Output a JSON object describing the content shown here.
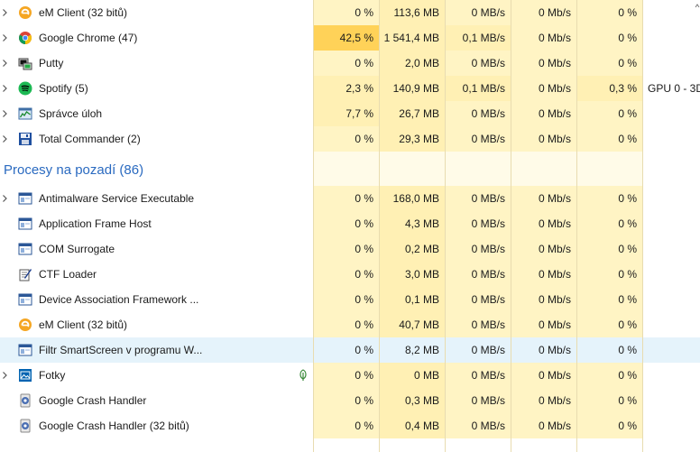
{
  "colors": {
    "heat_0": "#fff4c4",
    "heat_1": "#fff0b4",
    "heat_high": "#ffd258",
    "group_bg": "#fffbe8",
    "highlight": "#e5f3fb",
    "group_title": "#2a6ac0"
  },
  "apps": [
    {
      "name": "eM Client (32 bitů)",
      "icon": "emclient-icon",
      "expandable": true,
      "cpu": "0 %",
      "mem": "113,6 MB",
      "disk": "0 MB/s",
      "net": "0 Mb/s",
      "gpu": "0 %",
      "gpu_engine": ""
    },
    {
      "name": "Google Chrome (47)",
      "icon": "chrome-icon",
      "expandable": true,
      "cpu": "42,5 %",
      "mem": "1 541,4 MB",
      "disk": "0,1 MB/s",
      "net": "0 Mb/s",
      "gpu": "0 %",
      "gpu_engine": ""
    },
    {
      "name": "Putty",
      "icon": "putty-icon",
      "expandable": true,
      "cpu": "0 %",
      "mem": "2,0 MB",
      "disk": "0 MB/s",
      "net": "0 Mb/s",
      "gpu": "0 %",
      "gpu_engine": ""
    },
    {
      "name": "Spotify (5)",
      "icon": "spotify-icon",
      "expandable": true,
      "cpu": "2,3 %",
      "mem": "140,9 MB",
      "disk": "0,1 MB/s",
      "net": "0 Mb/s",
      "gpu": "0,3 %",
      "gpu_engine": "GPU 0 - 3D"
    },
    {
      "name": "Správce úloh",
      "icon": "task-manager-icon",
      "expandable": true,
      "cpu": "7,7 %",
      "mem": "26,7 MB",
      "disk": "0 MB/s",
      "net": "0 Mb/s",
      "gpu": "0 %",
      "gpu_engine": ""
    },
    {
      "name": "Total Commander (2)",
      "icon": "total-commander-icon",
      "expandable": true,
      "cpu": "0 %",
      "mem": "29,3 MB",
      "disk": "0 MB/s",
      "net": "0 Mb/s",
      "gpu": "0 %",
      "gpu_engine": ""
    }
  ],
  "background_group": {
    "title": "Procesy na pozadí (86)"
  },
  "background": [
    {
      "name": "Antimalware Service Executable",
      "icon": "window-icon",
      "expandable": true,
      "cpu": "0 %",
      "mem": "168,0 MB",
      "disk": "0 MB/s",
      "net": "0 Mb/s",
      "gpu": "0 %"
    },
    {
      "name": "Application Frame Host",
      "icon": "window-icon",
      "expandable": false,
      "cpu": "0 %",
      "mem": "4,3 MB",
      "disk": "0 MB/s",
      "net": "0 Mb/s",
      "gpu": "0 %"
    },
    {
      "name": "COM Surrogate",
      "icon": "window-icon",
      "expandable": false,
      "cpu": "0 %",
      "mem": "0,2 MB",
      "disk": "0 MB/s",
      "net": "0 Mb/s",
      "gpu": "0 %"
    },
    {
      "name": "CTF Loader",
      "icon": "ctf-loader-icon",
      "expandable": false,
      "cpu": "0 %",
      "mem": "3,0 MB",
      "disk": "0 MB/s",
      "net": "0 Mb/s",
      "gpu": "0 %"
    },
    {
      "name": "Device Association Framework ...",
      "icon": "window-icon",
      "expandable": false,
      "cpu": "0 %",
      "mem": "0,1 MB",
      "disk": "0 MB/s",
      "net": "0 Mb/s",
      "gpu": "0 %"
    },
    {
      "name": "eM Client (32 bitů)",
      "icon": "emclient-icon",
      "expandable": false,
      "cpu": "0 %",
      "mem": "40,7 MB",
      "disk": "0 MB/s",
      "net": "0 Mb/s",
      "gpu": "0 %"
    },
    {
      "name": "Filtr SmartScreen v programu W...",
      "icon": "window-icon",
      "expandable": false,
      "cpu": "0 %",
      "mem": "8,2 MB",
      "disk": "0 MB/s",
      "net": "0 Mb/s",
      "gpu": "0 %",
      "highlighted": true
    },
    {
      "name": "Fotky",
      "icon": "photos-icon",
      "expandable": true,
      "cpu": "0 %",
      "mem": "0 MB",
      "disk": "0 MB/s",
      "net": "0 Mb/s",
      "gpu": "0 %",
      "suspended": true
    },
    {
      "name": "Google Crash Handler",
      "icon": "google-update-icon",
      "expandable": false,
      "cpu": "0 %",
      "mem": "0,3 MB",
      "disk": "0 MB/s",
      "net": "0 Mb/s",
      "gpu": "0 %"
    },
    {
      "name": "Google Crash Handler (32 bitů)",
      "icon": "google-update-icon",
      "expandable": false,
      "cpu": "0 %",
      "mem": "0,4 MB",
      "disk": "0 MB/s",
      "net": "0 Mb/s",
      "gpu": "0 %"
    }
  ]
}
